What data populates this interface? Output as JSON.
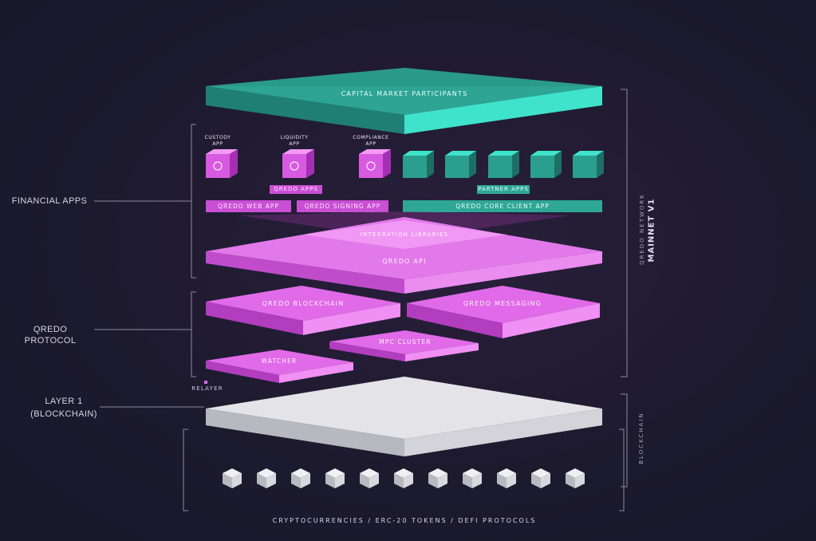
{
  "layers": {
    "capital_market": "CAPITAL MARKET PARTICIPANTS",
    "integration_libraries": "INTEGRATION LIBRARIES",
    "qredo_api": "QREDO API",
    "qredo_blockchain": "QREDO BLOCKCHAIN",
    "qredo_messaging": "QREDO MESSAGING",
    "mpc_cluster": "MPC CLUSTER",
    "watcher": "WATCHER",
    "relayer": "RELAYER"
  },
  "apps": {
    "custody": "CUSTODY APP",
    "liquidity": "LIQUIDITY APP",
    "compliance": "COMPLIANCE APP",
    "qredo_apps": "QREDO APPS",
    "partner_apps": "PARTNER APPS",
    "qredo_web_app": "QREDO WEB APP",
    "qredo_signing_app": "QREDO SIGNING APP",
    "qredo_core_client_app": "QREDO CORE CLIENT APP"
  },
  "side_labels": {
    "financial_apps": "FINANCIAL APPS",
    "qredo_protocol": "QREDO PROTOCOL",
    "layer1_line1": "LAYER 1",
    "layer1_line2": "(BLOCKCHAIN)"
  },
  "right_labels": {
    "network": "QREDO NETWORK",
    "mainnet": "MAINNET V1",
    "blockchain": "BLOCKCHAIN"
  },
  "footer": "CRYPTOCURRENCIES / ERC-20 TOKENS / DEFI PROTOCOLS",
  "colors": {
    "teal": "#3fe3cb",
    "teal_dark": "#1f8f80",
    "magenta": "#e06ae8",
    "magenta_dark": "#a52fb4",
    "grey": "#e6e6ea",
    "grey_dark": "#a9a9b1",
    "bracket": "#8e8aa0"
  }
}
